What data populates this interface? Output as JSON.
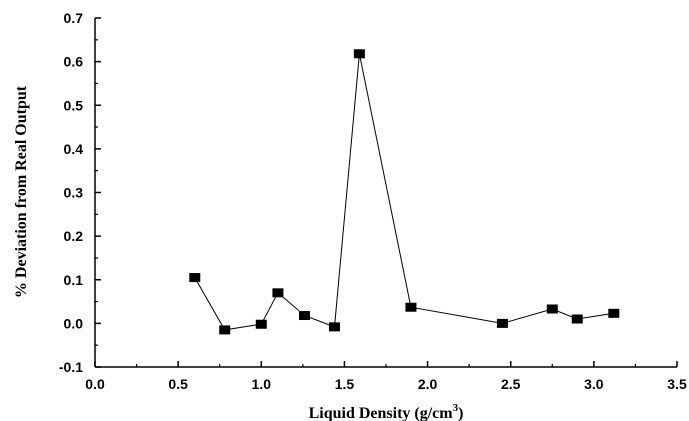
{
  "chart_data": {
    "type": "line",
    "xlabel": "Liquid Density (g/cm",
    "xlabel_sup": "3",
    "xlabel_end": ")",
    "ylabel": "% Deviation from Real Output",
    "xlim": [
      0.0,
      3.5
    ],
    "ylim": [
      -0.1,
      0.7
    ],
    "x_ticks": [
      "0.0",
      "0.5",
      "1.0",
      "1.5",
      "2.0",
      "2.5",
      "3.0",
      "3.5"
    ],
    "y_ticks": [
      "-0.1",
      "0.0",
      "0.1",
      "0.2",
      "0.3",
      "0.4",
      "0.5",
      "0.6",
      "0.7"
    ],
    "grid": false,
    "marker": "square",
    "series": [
      {
        "x": [
          0.6,
          0.78,
          1.0,
          1.1,
          1.26,
          1.44,
          1.59,
          1.9,
          2.45,
          2.75,
          2.9,
          3.12
        ],
        "y": [
          0.105,
          -0.015,
          -0.002,
          0.07,
          0.018,
          -0.008,
          0.618,
          0.037,
          0.0,
          0.033,
          0.01,
          0.023
        ],
        "color": "#000000"
      }
    ]
  }
}
